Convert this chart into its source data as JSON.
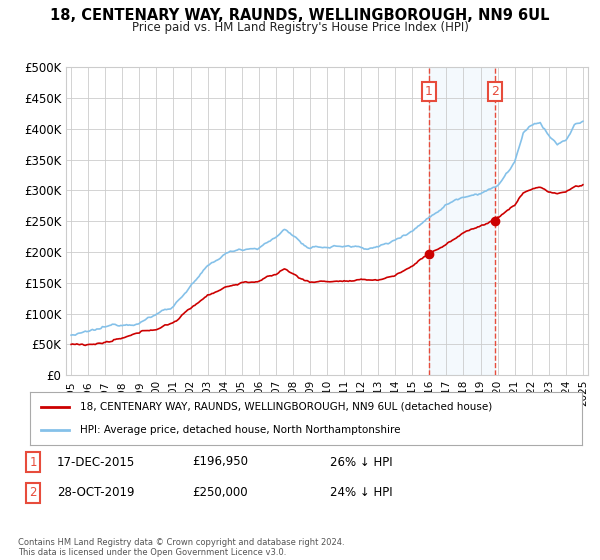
{
  "title": "18, CENTENARY WAY, RAUNDS, WELLINGBOROUGH, NN9 6UL",
  "subtitle": "Price paid vs. HM Land Registry's House Price Index (HPI)",
  "ylim": [
    0,
    500000
  ],
  "yticks": [
    0,
    50000,
    100000,
    150000,
    200000,
    250000,
    300000,
    350000,
    400000,
    450000,
    500000
  ],
  "ytick_labels": [
    "£0",
    "£50K",
    "£100K",
    "£150K",
    "£200K",
    "£250K",
    "£300K",
    "£350K",
    "£400K",
    "£450K",
    "£500K"
  ],
  "sale1_date": 2015.96,
  "sale1_price": 196950,
  "sale1_label": "1",
  "sale2_date": 2019.83,
  "sale2_price": 250000,
  "sale2_label": "2",
  "line_color_hpi": "#85c1e9",
  "line_color_property": "#cc0000",
  "shade_color": "#d6eaf8",
  "vline_color": "#e74c3c",
  "legend_label_property": "18, CENTENARY WAY, RAUNDS, WELLINGBOROUGH, NN9 6UL (detached house)",
  "legend_label_hpi": "HPI: Average price, detached house, North Northamptonshire",
  "note1_label": "1",
  "note1_date": "17-DEC-2015",
  "note1_price": "£196,950",
  "note1_pct": "26% ↓ HPI",
  "note2_label": "2",
  "note2_date": "28-OCT-2019",
  "note2_price": "£250,000",
  "note2_pct": "24% ↓ HPI",
  "footer": "Contains HM Land Registry data © Crown copyright and database right 2024.\nThis data is licensed under the Open Government Licence v3.0."
}
